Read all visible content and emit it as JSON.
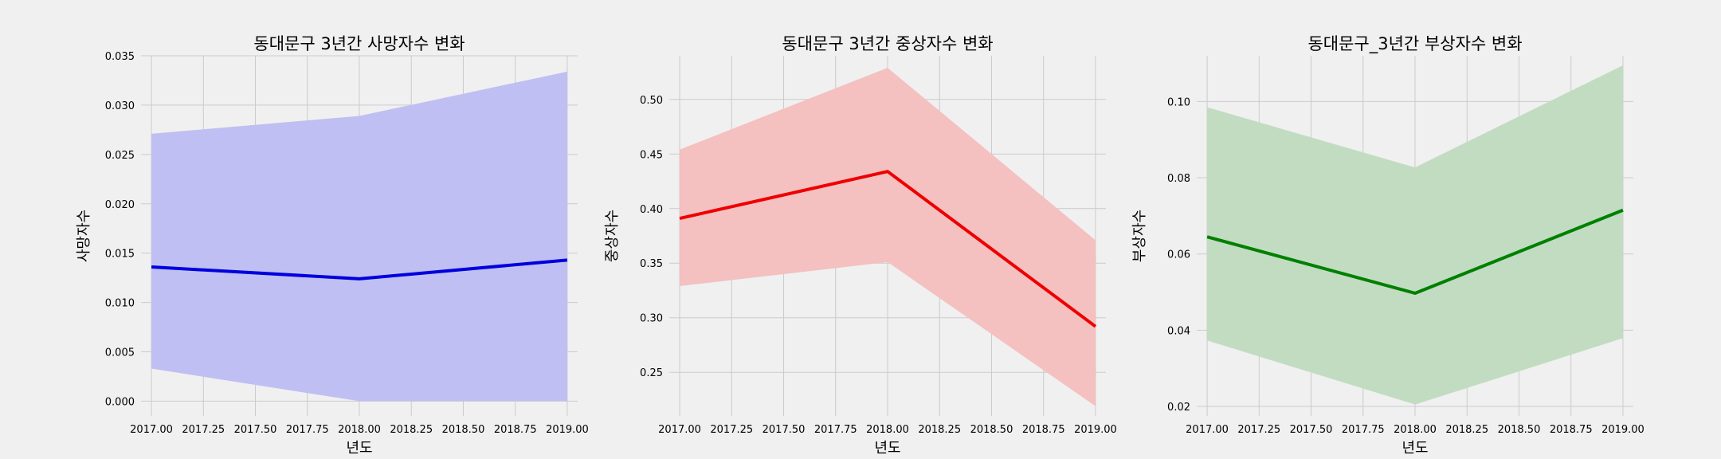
{
  "chart_data": [
    {
      "type": "line",
      "title": "동대문구 3년간 사망자수 변화",
      "xlabel": "년도",
      "ylabel": "사망자수",
      "x": [
        2017,
        2018,
        2019
      ],
      "series": [
        {
          "values": [
            0.0136,
            0.0124,
            0.0143
          ],
          "ci_lower": [
            0.0033,
            0.0,
            0.0
          ],
          "ci_upper": [
            0.0271,
            0.0289,
            0.0334
          ]
        }
      ],
      "xlim": [
        2016.95,
        2019.05
      ],
      "ylim": [
        -0.0015,
        0.035
      ],
      "xticks": [
        "2017.00",
        "2017.25",
        "2017.50",
        "2017.75",
        "2018.00",
        "2018.25",
        "2018.50",
        "2018.75",
        "2019.00"
      ],
      "yticks": [
        "0.000",
        "0.005",
        "0.010",
        "0.015",
        "0.020",
        "0.025",
        "0.030",
        "0.035"
      ],
      "grid": true,
      "line_color": "#0000dd",
      "band_color": "#bfbff3"
    },
    {
      "type": "line",
      "title": "동대문구 3년간 중상자수 변화",
      "xlabel": "년도",
      "ylabel": "중상자수",
      "x": [
        2017,
        2018,
        2019
      ],
      "series": [
        {
          "values": [
            0.391,
            0.434,
            0.292
          ],
          "ci_lower": [
            0.329,
            0.351,
            0.219
          ],
          "ci_upper": [
            0.454,
            0.529,
            0.371
          ]
        }
      ],
      "xlim": [
        2016.95,
        2019.05
      ],
      "ylim": [
        0.21,
        0.54
      ],
      "xticks": [
        "2017.00",
        "2017.25",
        "2017.50",
        "2017.75",
        "2018.00",
        "2018.25",
        "2018.50",
        "2018.75",
        "2019.00"
      ],
      "yticks": [
        "0.25",
        "0.30",
        "0.35",
        "0.40",
        "0.45",
        "0.50"
      ],
      "grid": true,
      "line_color": "#ee0000",
      "band_color": "#f4c0c0"
    },
    {
      "type": "line",
      "title": "동대문구_3년간 부상자수 변화",
      "xlabel": "년도",
      "ylabel": "부상자수",
      "x": [
        2017,
        2018,
        2019
      ],
      "series": [
        {
          "values": [
            0.0645,
            0.0497,
            0.0715
          ],
          "ci_lower": [
            0.0373,
            0.0205,
            0.0379
          ],
          "ci_upper": [
            0.0985,
            0.0827,
            0.1095
          ]
        }
      ],
      "xlim": [
        2016.95,
        2019.05
      ],
      "ylim": [
        0.0175,
        0.112
      ],
      "xticks": [
        "2017.00",
        "2017.25",
        "2017.50",
        "2017.75",
        "2018.00",
        "2018.25",
        "2018.50",
        "2018.75",
        "2019.00"
      ],
      "yticks": [
        "0.02",
        "0.04",
        "0.06",
        "0.08",
        "0.10"
      ],
      "grid": true,
      "line_color": "#008000",
      "band_color": "#c2dcc2"
    }
  ]
}
